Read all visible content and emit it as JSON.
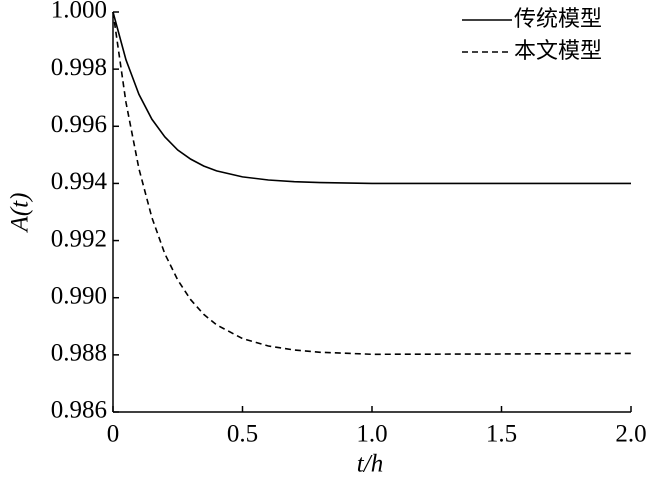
{
  "chart_data": {
    "type": "line",
    "x": [
      0,
      0.05,
      0.1,
      0.15,
      0.2,
      0.25,
      0.3,
      0.35,
      0.4,
      0.5,
      0.6,
      0.7,
      0.8,
      1.0,
      1.5,
      2.0
    ],
    "series": [
      {
        "name": "传统模型",
        "color": "#000000",
        "style": "solid",
        "values": [
          1.0,
          0.99833,
          0.99712,
          0.99625,
          0.99563,
          0.99517,
          0.99485,
          0.99461,
          0.99444,
          0.99423,
          0.99412,
          0.99406,
          0.99403,
          0.994,
          0.994,
          0.994
        ]
      },
      {
        "name": "本文模型",
        "color": "#000000",
        "style": "dashed",
        "values": [
          1.0,
          0.99684,
          0.99452,
          0.99281,
          0.99154,
          0.99062,
          0.98993,
          0.98942,
          0.98905,
          0.98857,
          0.98831,
          0.98817,
          0.98809,
          0.98802,
          0.98803,
          0.98805
        ]
      }
    ],
    "xlabel": "t/h",
    "ylabel": "A(t)",
    "xlim": [
      0,
      2.0
    ],
    "xticks": [
      0,
      0.5,
      {
        "value": 1.0,
        "label": "1.0"
      },
      1.5,
      {
        "value": 2.0,
        "label": "2.0"
      }
    ],
    "ylim": [
      0.986,
      1.0
    ],
    "yticks": [
      0.986,
      0.988,
      {
        "value": 0.99,
        "label": "0.990"
      },
      0.992,
      0.994,
      0.996,
      0.998,
      {
        "value": 1.0,
        "label": "1.000"
      }
    ],
    "legend": "upper right",
    "grid": false
  }
}
